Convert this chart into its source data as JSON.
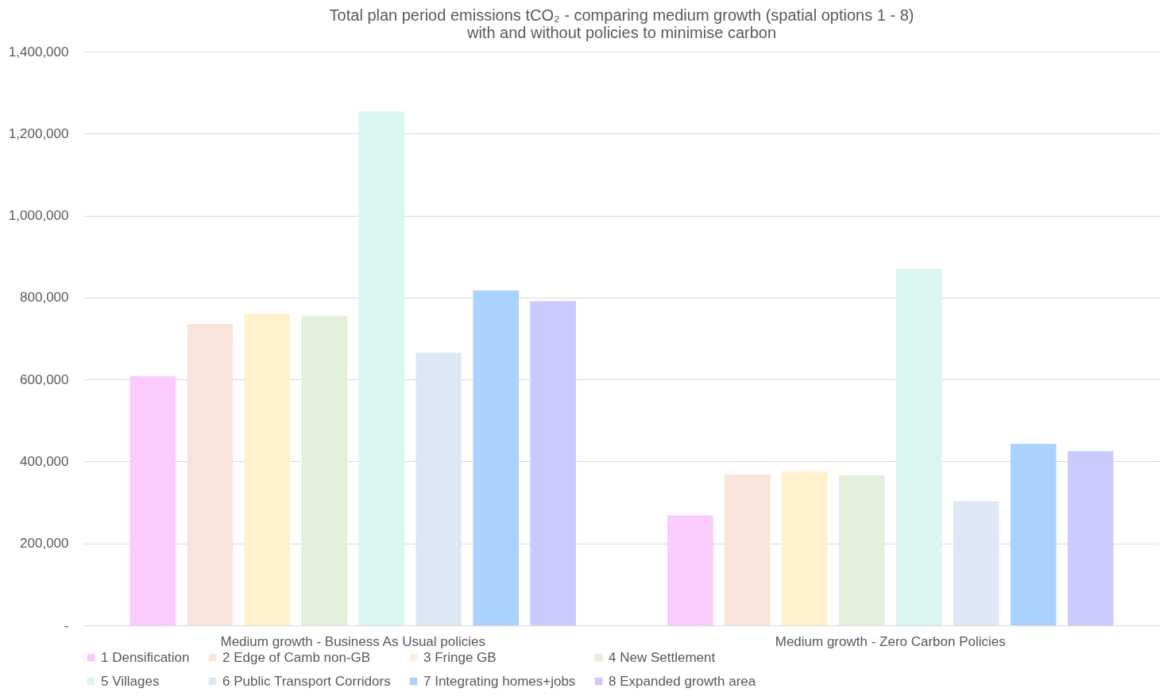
{
  "chart_data": {
    "type": "bar",
    "title": "Total plan period emissions tCO₂ - comparing medium growth (spatial options 1 - 8) with and without policies to minimise carbon",
    "categories": [
      "Medium growth - Business As Usual policies",
      "Medium growth - Zero Carbon Policies"
    ],
    "series": [
      {
        "name": "1 Densification",
        "color": "#fbcafe",
        "values": [
          608000,
          268000
        ]
      },
      {
        "name": "2 Edge of Camb non-GB",
        "color": "#f9e4d9",
        "values": [
          736000,
          368000
        ]
      },
      {
        "name": "3 Fringe GB",
        "color": "#fff1cc",
        "values": [
          760000,
          376000
        ]
      },
      {
        "name": "4 New Settlement",
        "color": "#e2efd9",
        "values": [
          754000,
          366000
        ]
      },
      {
        "name": "5 Villages",
        "color": "#dbf5f1",
        "values": [
          1254000,
          870000
        ]
      },
      {
        "name": "6 Public Transport Corridors",
        "color": "#dde8f5",
        "values": [
          665000,
          303000
        ]
      },
      {
        "name": "7 Integrating homes+jobs",
        "color": "#a9d3fe",
        "values": [
          817000,
          443000
        ]
      },
      {
        "name": "8 Expanded growth area",
        "color": "#cbcafe",
        "values": [
          791000,
          425000
        ]
      }
    ],
    "ylim": [
      0,
      1400000
    ],
    "yticks": [
      {
        "value": 0,
        "label": "-"
      },
      {
        "value": 200000,
        "label": "200,000"
      },
      {
        "value": 400000,
        "label": "400,000"
      },
      {
        "value": 600000,
        "label": "600,000"
      },
      {
        "value": 800000,
        "label": "800,000"
      },
      {
        "value": 1000000,
        "label": "1,000,000"
      },
      {
        "value": 1200000,
        "label": "1,200,000"
      },
      {
        "value": 1400000,
        "label": "1,400,000"
      }
    ],
    "grid": "y",
    "legend": "bottom"
  }
}
